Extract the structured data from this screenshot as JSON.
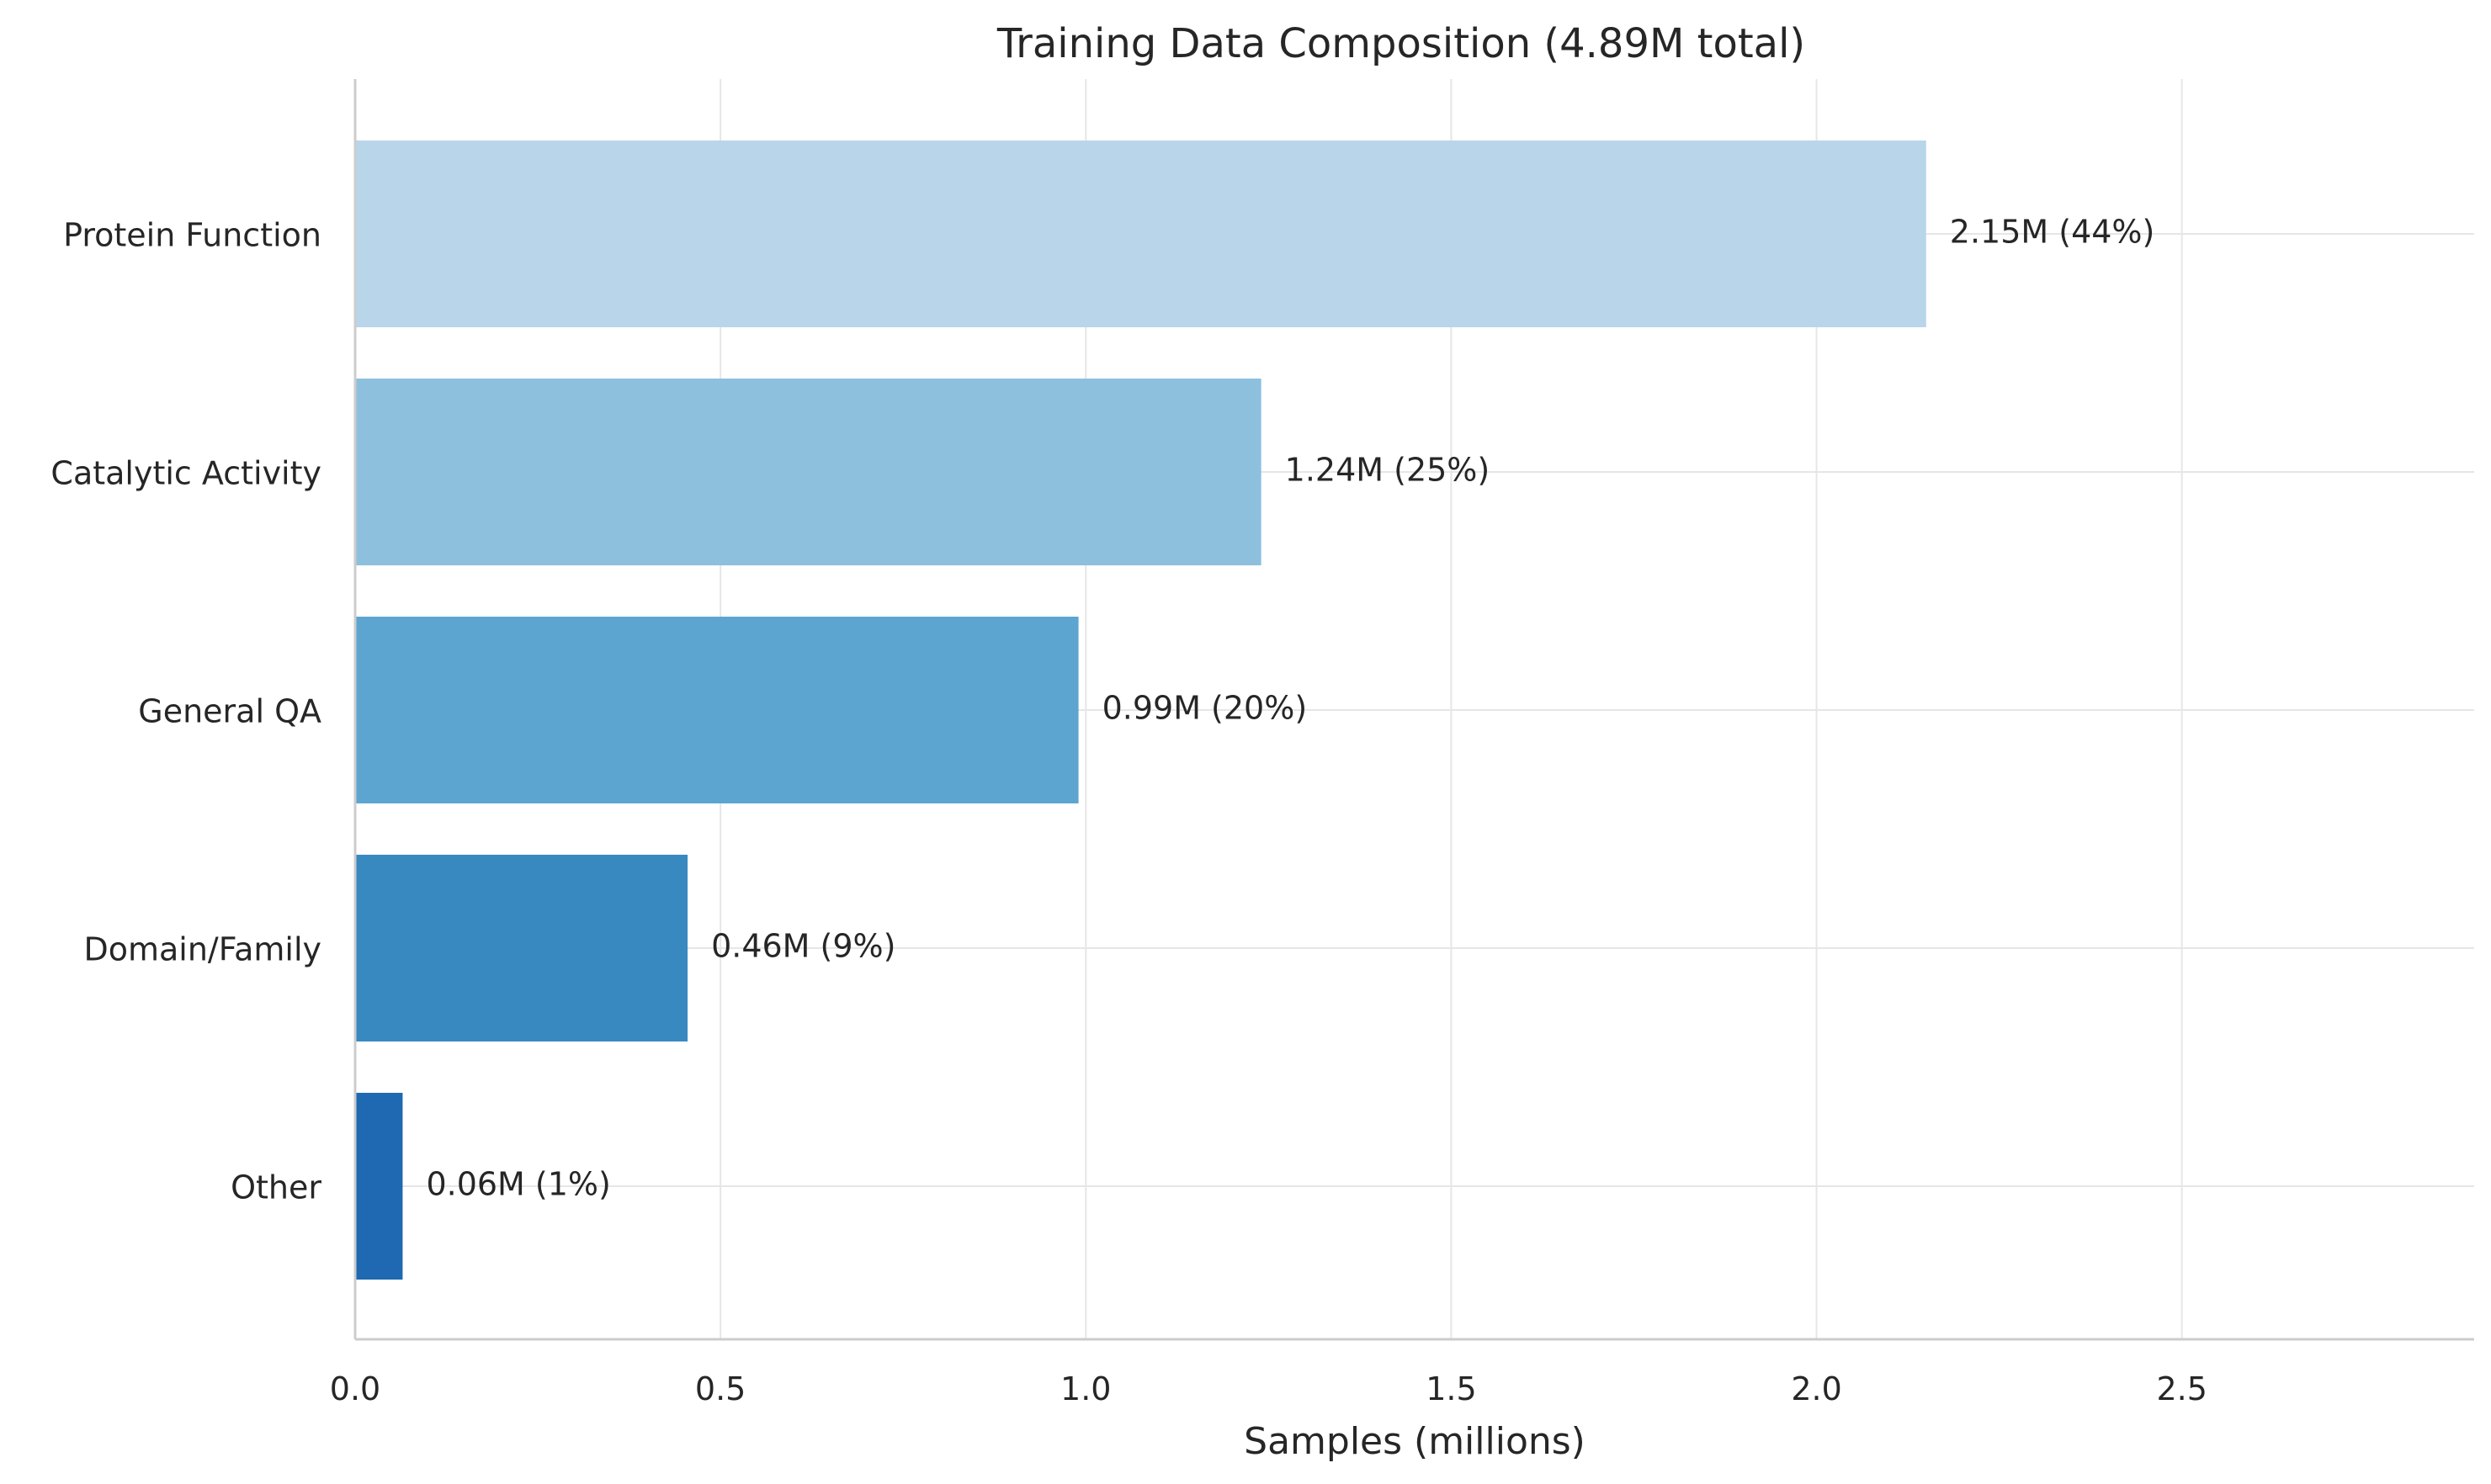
{
  "chart_data": {
    "type": "bar",
    "orientation": "horizontal",
    "title": "Training Data Composition (4.89M total)",
    "xlabel": "Samples (millions)",
    "ylabel": "",
    "xlim": [
      0,
      2.9
    ],
    "xticks": [
      0.0,
      0.5,
      1.0,
      1.5,
      2.0,
      2.5
    ],
    "xtick_labels": [
      "0.0",
      "0.5",
      "1.0",
      "1.5",
      "2.0",
      "2.5"
    ],
    "grid": true,
    "categories": [
      "Protein Function",
      "Catalytic Activity",
      "General QA",
      "Domain/Family",
      "Other"
    ],
    "values": [
      2.15,
      1.24,
      0.99,
      0.455,
      0.065
    ],
    "data_labels": [
      "2.15M (44%)",
      "1.24M (25%)",
      "0.99M (20%)",
      "0.46M (9%)",
      "0.06M (1%)"
    ],
    "colors": [
      "#b9d5ea",
      "#8dc0dd",
      "#5da5d1",
      "#3989c1",
      "#1e69b1"
    ]
  }
}
